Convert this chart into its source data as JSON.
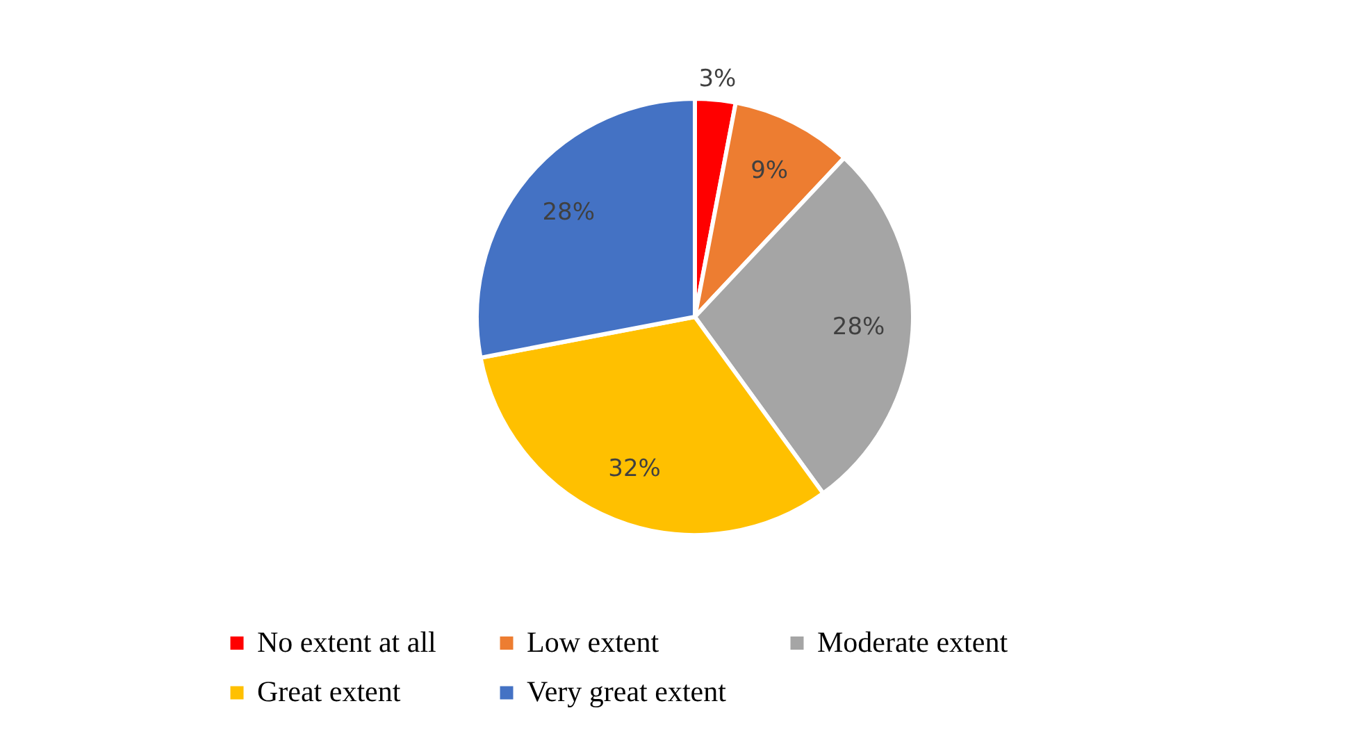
{
  "chart_data": {
    "type": "pie",
    "categories": [
      "No extent at all",
      "Low extent",
      "Moderate extent",
      "Great extent",
      "Very great extent"
    ],
    "values": [
      3,
      9,
      28,
      32,
      28
    ],
    "colors": [
      "#ff0000",
      "#ed7d31",
      "#a5a5a5",
      "#ffc000",
      "#4472c4"
    ],
    "value_labels": [
      "3%",
      "9%",
      "28%",
      "32%",
      "28%"
    ],
    "legend": "bottom"
  }
}
